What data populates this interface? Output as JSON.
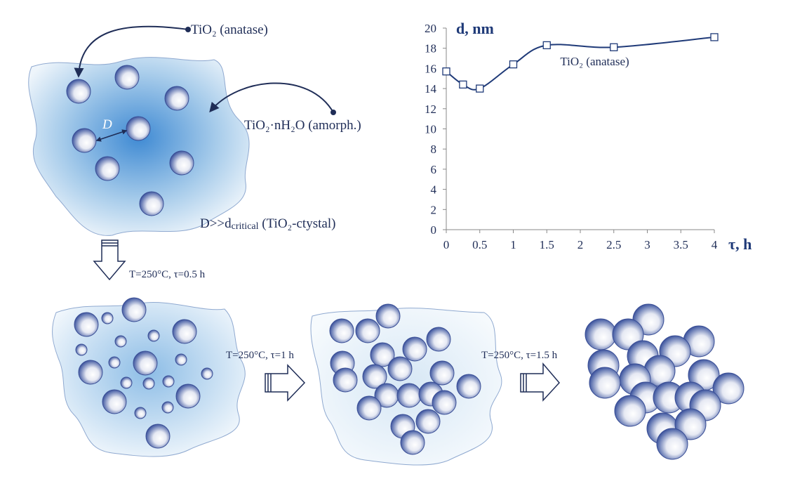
{
  "chart_data": {
    "type": "line",
    "y_label": "d, nm",
    "x_label": "τ, h",
    "annotation": "TiO₂ (anatase)",
    "x": [
      0,
      0.25,
      0.5,
      1,
      1.5,
      2.5,
      4
    ],
    "values": [
      15.7,
      14.4,
      14.0,
      16.4,
      18.3,
      18.1,
      19.1
    ],
    "xlim": [
      0,
      4
    ],
    "ylim": [
      0,
      20
    ],
    "xticks": [
      0,
      0.5,
      1,
      1.5,
      2,
      2.5,
      3,
      3.5,
      4
    ],
    "yticks": [
      0,
      2,
      4,
      6,
      8,
      10,
      12,
      14,
      16,
      18,
      20
    ],
    "color": "#1f3a78"
  },
  "labels": {
    "anatase": "TiO₂ (anatase)",
    "amorph": "TiO₂·nH₂O (amorph.)",
    "distance": "D",
    "critical_a": "D>>d",
    "critical_b": "critical",
    "critical_c": " (TiO₂-ctystal)"
  },
  "conditions": [
    "T=250°C, τ=0.5 h",
    "T=250°C, τ=1 h",
    "T=250°C, τ=1.5 h"
  ]
}
